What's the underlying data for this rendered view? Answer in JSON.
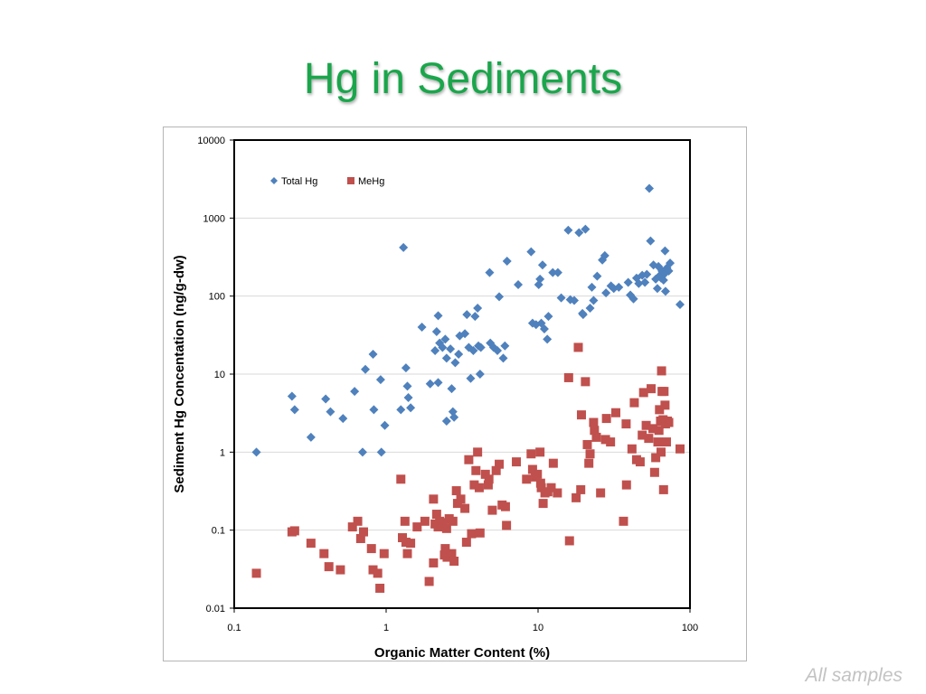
{
  "slide": {
    "title": "Hg in Sediments",
    "title_color": "#1aa64b",
    "footnote": "All samples"
  },
  "chart_data": {
    "type": "scatter",
    "title": "",
    "xlabel": "Organic Matter Content (%)",
    "ylabel": "Sediment Hg Concentation (ng/g-dw)",
    "x_scale": "log",
    "y_scale": "log",
    "xlim": [
      0.1,
      100
    ],
    "ylim": [
      0.01,
      10000
    ],
    "x_ticks": [
      "0.1",
      "1",
      "10",
      "100"
    ],
    "y_ticks": [
      "0.01",
      "0.1",
      "1",
      "10",
      "100",
      "1000",
      "10000"
    ],
    "grid": "horizontal major gridlines",
    "legend_position": "top-left",
    "series": [
      {
        "name": "Total Hg",
        "marker": "diamond",
        "color": "#4f81bd",
        "points": [
          [
            0.14,
            1.0
          ],
          [
            0.24,
            5.2
          ],
          [
            0.25,
            3.5
          ],
          [
            0.32,
            1.55
          ],
          [
            0.4,
            4.8
          ],
          [
            0.43,
            3.3
          ],
          [
            0.52,
            2.7
          ],
          [
            0.62,
            6.0
          ],
          [
            0.7,
            1.0
          ],
          [
            0.73,
            11.5
          ],
          [
            0.82,
            18
          ],
          [
            0.83,
            3.5
          ],
          [
            0.92,
            8.5
          ],
          [
            0.93,
            1.0
          ],
          [
            0.98,
            2.2
          ],
          [
            1.25,
            3.5
          ],
          [
            1.3,
            420
          ],
          [
            1.35,
            12
          ],
          [
            1.38,
            7
          ],
          [
            1.4,
            5
          ],
          [
            1.45,
            3.7
          ],
          [
            1.72,
            40
          ],
          [
            1.95,
            7.5
          ],
          [
            2.1,
            20
          ],
          [
            2.15,
            35
          ],
          [
            2.2,
            56
          ],
          [
            2.2,
            7.8
          ],
          [
            2.25,
            25
          ],
          [
            2.35,
            22
          ],
          [
            2.45,
            28
          ],
          [
            2.5,
            16
          ],
          [
            2.5,
            2.5
          ],
          [
            2.65,
            21
          ],
          [
            2.7,
            6.5
          ],
          [
            2.75,
            3.3
          ],
          [
            2.8,
            2.8
          ],
          [
            2.85,
            14
          ],
          [
            3.0,
            18
          ],
          [
            3.05,
            31
          ],
          [
            3.3,
            33
          ],
          [
            3.4,
            58
          ],
          [
            3.5,
            22
          ],
          [
            3.6,
            8.8
          ],
          [
            3.75,
            20
          ],
          [
            3.85,
            55
          ],
          [
            4.0,
            70
          ],
          [
            4.05,
            23
          ],
          [
            4.15,
            10
          ],
          [
            4.2,
            22
          ],
          [
            4.8,
            200
          ],
          [
            4.85,
            25
          ],
          [
            5.1,
            22
          ],
          [
            5.4,
            20
          ],
          [
            5.55,
            98
          ],
          [
            5.9,
            16
          ],
          [
            6.05,
            23
          ],
          [
            6.25,
            280
          ],
          [
            7.4,
            140
          ],
          [
            9.0,
            370
          ],
          [
            9.2,
            45
          ],
          [
            9.7,
            43
          ],
          [
            10.1,
            140
          ],
          [
            10.3,
            165
          ],
          [
            10.5,
            45
          ],
          [
            10.7,
            250
          ],
          [
            11.0,
            38
          ],
          [
            11.5,
            28
          ],
          [
            11.7,
            55
          ],
          [
            12.5,
            200
          ],
          [
            13.5,
            200
          ],
          [
            14.2,
            95
          ],
          [
            15.8,
            700
          ],
          [
            16.3,
            90
          ],
          [
            17.3,
            88
          ],
          [
            18.6,
            650
          ],
          [
            19.6,
            60
          ],
          [
            19.8,
            58
          ],
          [
            20.5,
            720
          ],
          [
            22.0,
            70
          ],
          [
            22.6,
            130
          ],
          [
            23.2,
            88
          ],
          [
            24.5,
            180
          ],
          [
            26.5,
            290
          ],
          [
            27.5,
            330
          ],
          [
            28.0,
            110
          ],
          [
            30.2,
            135
          ],
          [
            31.5,
            125
          ],
          [
            34.0,
            130
          ],
          [
            39.2,
            150
          ],
          [
            40.5,
            103
          ],
          [
            42.5,
            92
          ],
          [
            44.5,
            170
          ],
          [
            46.0,
            145
          ],
          [
            48.5,
            185
          ],
          [
            50.5,
            150
          ],
          [
            52.0,
            190
          ],
          [
            54.0,
            2400
          ],
          [
            55.0,
            510
          ],
          [
            57.5,
            250
          ],
          [
            59.5,
            165
          ],
          [
            61.0,
            125
          ],
          [
            62.0,
            240
          ],
          [
            63.5,
            185
          ],
          [
            64.5,
            170
          ],
          [
            65.5,
            210
          ],
          [
            66.0,
            205
          ],
          [
            67.0,
            160
          ],
          [
            67.5,
            190
          ],
          [
            68.5,
            380
          ],
          [
            69.0,
            115
          ],
          [
            70.5,
            230
          ],
          [
            72.5,
            210
          ],
          [
            74.0,
            265
          ],
          [
            86.0,
            78
          ]
        ]
      },
      {
        "name": "MeHg",
        "marker": "square",
        "color": "#c0504d",
        "points": [
          [
            0.14,
            0.028
          ],
          [
            0.24,
            0.095
          ],
          [
            0.25,
            0.098
          ],
          [
            0.32,
            0.068
          ],
          [
            0.39,
            0.05
          ],
          [
            0.42,
            0.034
          ],
          [
            0.5,
            0.031
          ],
          [
            0.6,
            0.11
          ],
          [
            0.65,
            0.13
          ],
          [
            0.68,
            0.078
          ],
          [
            0.71,
            0.095
          ],
          [
            0.8,
            0.058
          ],
          [
            0.82,
            0.031
          ],
          [
            0.88,
            0.028
          ],
          [
            0.91,
            0.018
          ],
          [
            0.97,
            0.05
          ],
          [
            1.25,
            0.45
          ],
          [
            1.28,
            0.08
          ],
          [
            1.33,
            0.13
          ],
          [
            1.35,
            0.07
          ],
          [
            1.38,
            0.05
          ],
          [
            1.45,
            0.068
          ],
          [
            1.6,
            0.11
          ],
          [
            1.8,
            0.13
          ],
          [
            1.92,
            0.022
          ],
          [
            2.05,
            0.25
          ],
          [
            2.05,
            0.038
          ],
          [
            2.1,
            0.12
          ],
          [
            2.15,
            0.16
          ],
          [
            2.2,
            0.11
          ],
          [
            2.25,
            0.13
          ],
          [
            2.3,
            0.125
          ],
          [
            2.4,
            0.12
          ],
          [
            2.42,
            0.048
          ],
          [
            2.45,
            0.058
          ],
          [
            2.5,
            0.105
          ],
          [
            2.52,
            0.045
          ],
          [
            2.6,
            0.14
          ],
          [
            2.7,
            0.05
          ],
          [
            2.75,
            0.13
          ],
          [
            2.8,
            0.04
          ],
          [
            2.9,
            0.32
          ],
          [
            2.95,
            0.22
          ],
          [
            3.1,
            0.25
          ],
          [
            3.3,
            0.19
          ],
          [
            3.38,
            0.07
          ],
          [
            3.5,
            0.8
          ],
          [
            3.65,
            0.09
          ],
          [
            3.8,
            0.38
          ],
          [
            3.9,
            0.58
          ],
          [
            4.0,
            1.0
          ],
          [
            4.1,
            0.35
          ],
          [
            4.15,
            0.092
          ],
          [
            4.5,
            0.52
          ],
          [
            4.7,
            0.38
          ],
          [
            4.75,
            0.45
          ],
          [
            5.0,
            0.18
          ],
          [
            5.3,
            0.58
          ],
          [
            5.55,
            0.7
          ],
          [
            5.8,
            0.21
          ],
          [
            6.1,
            0.2
          ],
          [
            6.2,
            0.115
          ],
          [
            7.2,
            0.75
          ],
          [
            8.4,
            0.45
          ],
          [
            9.0,
            0.95
          ],
          [
            9.2,
            0.6
          ],
          [
            9.6,
            0.48
          ],
          [
            9.9,
            0.52
          ],
          [
            10.3,
            1.0
          ],
          [
            10.4,
            0.4
          ],
          [
            10.5,
            0.35
          ],
          [
            10.8,
            0.22
          ],
          [
            11.1,
            0.3
          ],
          [
            11.6,
            0.31
          ],
          [
            12.2,
            0.35
          ],
          [
            12.6,
            0.72
          ],
          [
            13.4,
            0.3
          ],
          [
            15.9,
            9
          ],
          [
            16.1,
            0.073
          ],
          [
            17.8,
            0.26
          ],
          [
            18.4,
            22
          ],
          [
            19.1,
            0.33
          ],
          [
            19.3,
            3.0
          ],
          [
            20.5,
            8
          ],
          [
            21.1,
            1.25
          ],
          [
            21.6,
            0.72
          ],
          [
            22.0,
            0.95
          ],
          [
            23.2,
            2.4
          ],
          [
            23.5,
            1.9
          ],
          [
            24.2,
            1.55
          ],
          [
            25.8,
            0.3
          ],
          [
            27.8,
            1.45
          ],
          [
            28.2,
            2.7
          ],
          [
            30.0,
            1.35
          ],
          [
            32.5,
            3.2
          ],
          [
            36.5,
            0.13
          ],
          [
            38.0,
            2.3
          ],
          [
            38.2,
            0.38
          ],
          [
            41.5,
            1.1
          ],
          [
            43.0,
            4.3
          ],
          [
            44.5,
            0.8
          ],
          [
            47.0,
            0.75
          ],
          [
            48.5,
            1.65
          ],
          [
            49.5,
            5.8
          ],
          [
            51.5,
            2.2
          ],
          [
            53.5,
            1.5
          ],
          [
            55.5,
            6.5
          ],
          [
            57.0,
            2.0
          ],
          [
            58.5,
            0.55
          ],
          [
            59.5,
            0.85
          ],
          [
            61.5,
            1.35
          ],
          [
            62.5,
            1.9
          ],
          [
            63.0,
            3.5
          ],
          [
            64.0,
            2.5
          ],
          [
            64.5,
            1.0
          ],
          [
            65.0,
            11
          ],
          [
            65.5,
            6
          ],
          [
            66.5,
            2.6
          ],
          [
            67.0,
            0.33
          ],
          [
            67.5,
            6
          ],
          [
            68.5,
            4
          ],
          [
            69.0,
            2.3
          ],
          [
            70.0,
            1.35
          ],
          [
            71.0,
            2.5
          ],
          [
            72.5,
            2.4
          ],
          [
            86.0,
            1.1
          ]
        ]
      }
    ]
  }
}
